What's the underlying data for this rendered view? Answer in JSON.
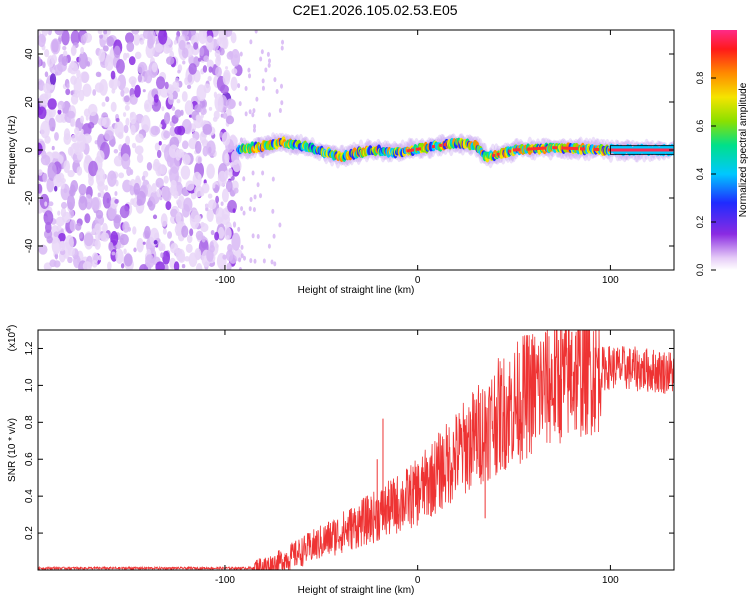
{
  "title": "C2E1.2026.105.02.53.E05",
  "chart_data": [
    {
      "type": "heatmap",
      "title": "C2E1.2026.105.02.53.E05",
      "xlabel": "Height of straight line (km)",
      "ylabel": "Frequency (Hz)",
      "xlim": [
        -197,
        133
      ],
      "ylim": [
        -50,
        50
      ],
      "xticks": [
        -100,
        0,
        100
      ],
      "xtick_labels": [
        "-100",
        "0",
        "100"
      ],
      "yticks": [
        -40,
        -20,
        0,
        20,
        40
      ],
      "ytick_labels": [
        "-40",
        "-20",
        "0",
        "20",
        "40"
      ],
      "noise_region_x": [
        -197,
        -93
      ],
      "signal_start_x": -93,
      "signal_band": [
        {
          "x": -93,
          "f": 0
        },
        {
          "x": -70,
          "f": 3
        },
        {
          "x": -55,
          "f": 1
        },
        {
          "x": -40,
          "f": -3
        },
        {
          "x": -25,
          "f": 0
        },
        {
          "x": -10,
          "f": -1
        },
        {
          "x": 5,
          "f": 1
        },
        {
          "x": 20,
          "f": 3
        },
        {
          "x": 30,
          "f": 2
        },
        {
          "x": 36,
          "f": -3
        },
        {
          "x": 50,
          "f": 0
        },
        {
          "x": 70,
          "f": 1
        },
        {
          "x": 100,
          "f": 0
        },
        {
          "x": 133,
          "f": 0
        }
      ],
      "colorbar": {
        "label": "Normalized spectral amplitude",
        "range": [
          0,
          1
        ],
        "ticks": [
          0.0,
          0.2,
          0.4,
          0.6,
          0.8
        ],
        "tick_labels": [
          "0.0",
          "0.2",
          "0.4",
          "0.6",
          "0.8"
        ]
      }
    },
    {
      "type": "line",
      "xlabel": "Height of straight line (km)",
      "ylabel": "SNR (10 * v/v)",
      "scale_label": "(x10",
      "scale_exp": "4",
      "scale_close": ")",
      "xlim": [
        -197,
        133
      ],
      "ylim": [
        0,
        1.3
      ],
      "xticks": [
        -100,
        0,
        100
      ],
      "xtick_labels": [
        "-100",
        "0",
        "100"
      ],
      "yticks": [
        0.2,
        0.4,
        0.6,
        0.8,
        1.0,
        1.2
      ],
      "ytick_labels": [
        "0.2",
        "0.4",
        "0.6",
        "0.8",
        "1.0",
        "1.2"
      ],
      "color": "#ee3333",
      "envelope": [
        {
          "x": -197,
          "y": 0.01
        },
        {
          "x": -85,
          "y": 0.01
        },
        {
          "x": -75,
          "y": 0.03
        },
        {
          "x": -60,
          "y": 0.1
        },
        {
          "x": -40,
          "y": 0.2
        },
        {
          "x": -20,
          "y": 0.3
        },
        {
          "x": 0,
          "y": 0.42
        },
        {
          "x": 20,
          "y": 0.62
        },
        {
          "x": 40,
          "y": 0.82
        },
        {
          "x": 60,
          "y": 0.97
        },
        {
          "x": 80,
          "y": 1.05
        },
        {
          "x": 100,
          "y": 1.1
        },
        {
          "x": 133,
          "y": 1.07
        }
      ],
      "spikes": [
        {
          "x": -18,
          "y": 0.82
        },
        {
          "x": -21,
          "y": 0.6
        },
        {
          "x": 35,
          "y": 0.28
        },
        {
          "x": 55,
          "y": 1.22
        },
        {
          "x": 80,
          "y": 1.29
        }
      ]
    }
  ]
}
